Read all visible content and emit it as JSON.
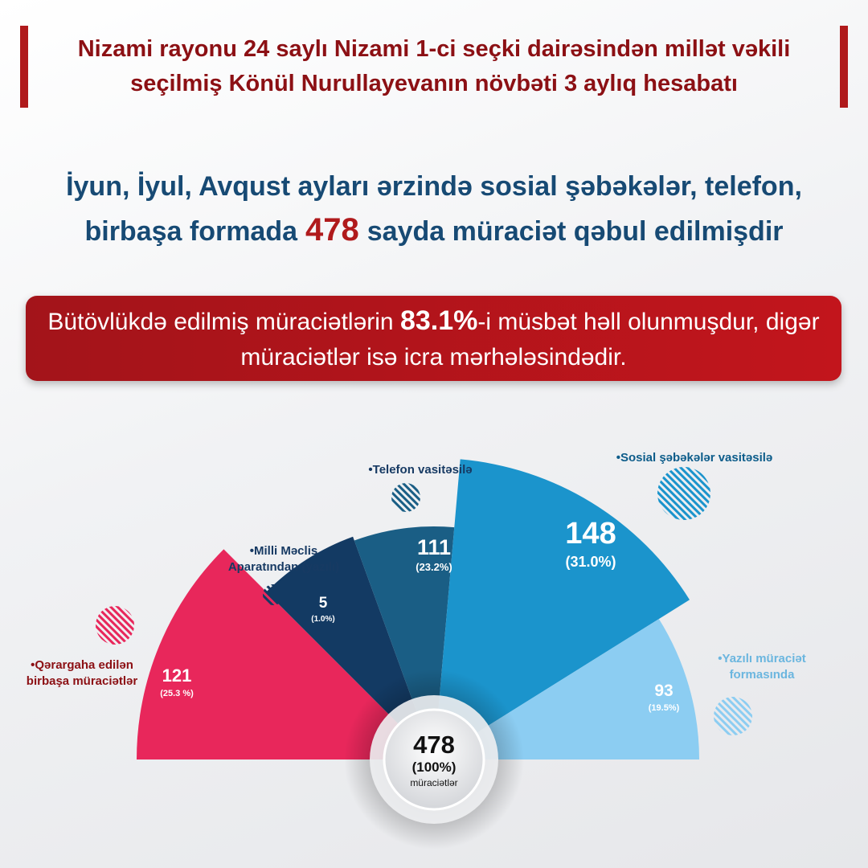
{
  "header": {
    "line1": "Nizami rayonu 24 saylı Nizami 1-ci seçki dairəsindən millət vəkili",
    "line2_a": "seçilmiş ",
    "line2_name": "Könül Nurullayeva",
    "line2_b": "nın növbəti ",
    "line2_num": "3 aylıq hesabatı"
  },
  "summary": {
    "line1": "İyun, İyul, Avqust ayları ərzində sosial şəbəkələr, telefon,",
    "line2_a": "birbaşa formada",
    "total": "478",
    "line2_b": "sayda müraciət qəbul edilmişdir"
  },
  "banner": {
    "text_a": "Bütövlükdə edilmiş müraciətlərin ",
    "percent": "83.1%",
    "text_b": "-i  müsbət həll olunmuşdur, digər",
    "line2": "müraciətlər isə icra mərhələsindədir."
  },
  "center": {
    "total": "478",
    "percent": "(100%)",
    "label": "müraciətlər"
  },
  "colors": {
    "accent_red": "#b01a1c",
    "heading_blue": "#174a74",
    "pink": "#e8275b",
    "navy": "#133a63",
    "teal": "#1a5e85",
    "blue": "#1b94cc",
    "light_blue": "#8ccdf2"
  },
  "chart_data": {
    "type": "pie",
    "total": 478,
    "series": [
      {
        "name": "Qərargaha edilən birbaşa müraciətlər",
        "value": 121,
        "value_label": "121",
        "percent_label": "(25.3 %)",
        "color": "#e8275b"
      },
      {
        "name": "Milli Məclis Aparatından (yazılı)",
        "value": 5,
        "value_label": "5",
        "percent_label": "(1.0%)",
        "color": "#133a63"
      },
      {
        "name": "Telefon vasitəsilə",
        "value": 111,
        "value_label": "111",
        "percent_label": "(23.2%)",
        "color": "#1a5e85"
      },
      {
        "name": "Sosial şəbəkələr vasitəsilə",
        "value": 148,
        "value_label": "148",
        "percent_label": "(31.0%)",
        "color": "#1b94cc"
      },
      {
        "name": "Yazılı müraciət formasında",
        "value": 93,
        "value_label": "93",
        "percent_label": "(19.5%)",
        "color": "#8ccdf2"
      }
    ],
    "legend_lines": [
      [
        "•Qərargaha edilən",
        "birbaşa müraciətlər"
      ],
      [
        "•Milli Məclis",
        "Aparatından  (yazılı)"
      ],
      [
        "•Telefon vasitəsilə"
      ],
      [
        "•Sosial şəbəkələr vasitəsilə"
      ],
      [
        "•Yazılı müraciət",
        "formasında"
      ]
    ]
  }
}
